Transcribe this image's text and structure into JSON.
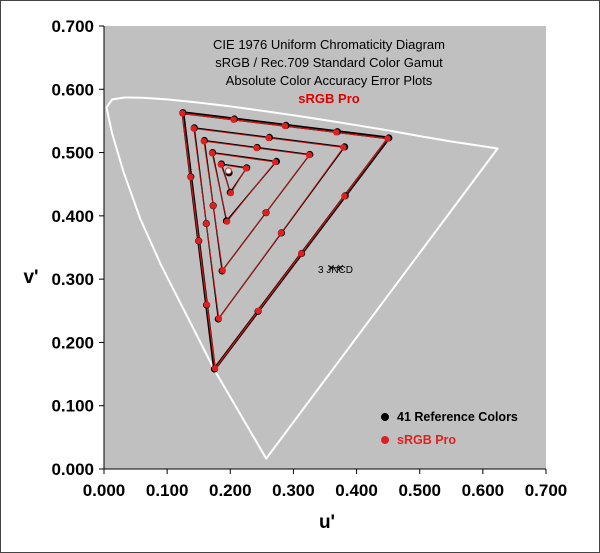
{
  "chart_data": {
    "type": "scatter",
    "title_lines": [
      "CIE 1976 Uniform Chromaticity Diagram",
      "sRGB / Rec.709 Standard Color Gamut",
      "Absolute Color Accuracy Error Plots"
    ],
    "subtitle": "sRGB Pro",
    "xlabel": "u'",
    "ylabel": "v'",
    "xlim": [
      0,
      0.7
    ],
    "ylim": [
      0,
      0.7
    ],
    "x_ticks": [
      "0.000",
      "0.100",
      "0.200",
      "0.300",
      "0.400",
      "0.500",
      "0.600",
      "0.700"
    ],
    "y_ticks": [
      "0.000",
      "0.100",
      "0.200",
      "0.300",
      "0.400",
      "0.500",
      "0.600",
      "0.700"
    ],
    "grid": false,
    "legend_position": "bottom-right",
    "annotation": {
      "text": "3 JNCD",
      "x": 0.367,
      "y": 0.318,
      "half_width": 0.0075
    },
    "spectral_locus": [
      [
        0.2568,
        0.0165
      ],
      [
        0.2224,
        0.0755
      ],
      [
        0.174,
        0.158
      ],
      [
        0.1305,
        0.2437
      ],
      [
        0.0905,
        0.322
      ],
      [
        0.0574,
        0.3957
      ],
      [
        0.0307,
        0.47
      ],
      [
        0.0125,
        0.5315
      ],
      [
        0.004,
        0.5714
      ],
      [
        0.013,
        0.584
      ],
      [
        0.033,
        0.587
      ],
      [
        0.06,
        0.5865
      ],
      [
        0.1,
        0.584
      ],
      [
        0.15,
        0.579
      ],
      [
        0.2,
        0.573
      ],
      [
        0.25,
        0.5662
      ],
      [
        0.3,
        0.559
      ],
      [
        0.35,
        0.5513
      ],
      [
        0.4,
        0.5433
      ],
      [
        0.45,
        0.535
      ],
      [
        0.5,
        0.526
      ],
      [
        0.55,
        0.5175
      ],
      [
        0.6,
        0.51
      ],
      [
        0.6233,
        0.5065
      ]
    ],
    "series": [
      {
        "name": "41 Reference Colors",
        "color": "#000000",
        "triangles": [
          [
            [
              0.451,
              0.523
            ],
            [
              0.125,
              0.563
            ],
            [
              0.175,
              0.158
            ]
          ],
          [
            [
              0.381,
              0.509
            ],
            [
              0.143,
              0.539
            ],
            [
              0.181,
              0.237
            ]
          ],
          [
            [
              0.326,
              0.497
            ],
            [
              0.159,
              0.519
            ],
            [
              0.187,
              0.313
            ]
          ],
          [
            [
              0.273,
              0.486
            ],
            [
              0.172,
              0.5
            ],
            [
              0.194,
              0.392
            ]
          ],
          [
            [
              0.226,
              0.476
            ],
            [
              0.186,
              0.482
            ],
            [
              0.2,
              0.437
            ]
          ]
        ],
        "extra_points": [
          [
            0.198,
            0.468
          ]
        ]
      },
      {
        "name": "sRGB Pro",
        "color": "#e02020",
        "triangles": [
          [
            [
              0.449,
              0.522
            ],
            [
              0.124,
              0.562
            ],
            [
              0.176,
              0.159
            ]
          ],
          [
            [
              0.379,
              0.508
            ],
            [
              0.142,
              0.538
            ],
            [
              0.182,
              0.238
            ]
          ],
          [
            [
              0.325,
              0.496
            ],
            [
              0.158,
              0.518
            ],
            [
              0.188,
              0.314
            ]
          ],
          [
            [
              0.271,
              0.485
            ],
            [
              0.171,
              0.499
            ],
            [
              0.195,
              0.391
            ]
          ],
          [
            [
              0.225,
              0.475
            ],
            [
              0.185,
              0.481
            ],
            [
              0.201,
              0.436
            ]
          ]
        ],
        "extra_points": [
          [
            0.197,
            0.471
          ]
        ]
      }
    ]
  },
  "colors": {
    "plot_bg": "#c0c0c0",
    "locus": "#ffffff",
    "reference": "#000000",
    "measured": "#e02020",
    "measured_line": "#c01818",
    "white_point": "#ffffff"
  }
}
